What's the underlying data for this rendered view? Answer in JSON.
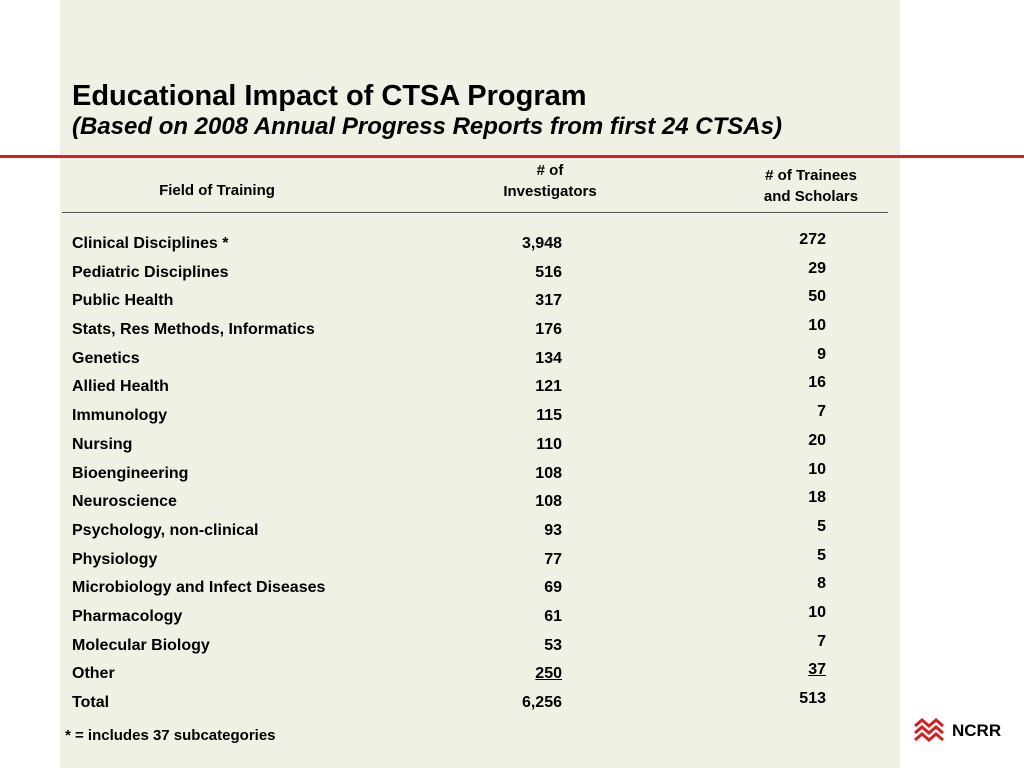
{
  "title": "Educational Impact of CTSA Program",
  "subtitle": "(Based on 2008 Annual Progress Reports from first 24 CTSAs)",
  "table": {
    "headers": {
      "field": "Field of Training",
      "investigators_line1": "# of",
      "investigators_line2": "Investigators",
      "trainees_line1": "# of Trainees",
      "trainees_line2": "and Scholars"
    },
    "rows": [
      {
        "field": "Clinical Disciplines *",
        "investigators": "3,948",
        "trainees": "272"
      },
      {
        "field": "Pediatric Disciplines",
        "investigators": "516",
        "trainees": "29"
      },
      {
        "field": "Public Health",
        "investigators": "317",
        "trainees": "50"
      },
      {
        "field": "Stats, Res Methods, Informatics",
        "investigators": "176",
        "trainees": "10"
      },
      {
        "field": "Genetics",
        "investigators": "134",
        "trainees": "9"
      },
      {
        "field": "Allied Health",
        "investigators": "121",
        "trainees": "16"
      },
      {
        "field": "Immunology",
        "investigators": "115",
        "trainees": "7"
      },
      {
        "field": "Nursing",
        "investigators": "110",
        "trainees": "20"
      },
      {
        "field": "Bioengineering",
        "investigators": "108",
        "trainees": "10"
      },
      {
        "field": "Neuroscience",
        "investigators": "108",
        "trainees": "18"
      },
      {
        "field": "Psychology, non-clinical",
        "investigators": "93",
        "trainees": "5"
      },
      {
        "field": "Physiology",
        "investigators": "77",
        "trainees": "5"
      },
      {
        "field": "Microbiology and Infect Diseases",
        "investigators": "69",
        "trainees": "8"
      },
      {
        "field": "Pharmacology",
        "investigators": "61",
        "trainees": "10"
      },
      {
        "field": "Molecular Biology",
        "investigators": "53",
        "trainees": "7"
      },
      {
        "field": "Other",
        "investigators": "250",
        "trainees": "37"
      },
      {
        "field": "Total",
        "investigators": "6,256",
        "trainees": "513"
      }
    ]
  },
  "footnote": "* = includes 37 subcategories",
  "logo": {
    "text": "NCRR",
    "icon": "ncrr-logo-icon",
    "color": "#d71f1f"
  },
  "colors": {
    "panel_background": "#f0f0e4",
    "accent_rule": "#d71f1f"
  }
}
